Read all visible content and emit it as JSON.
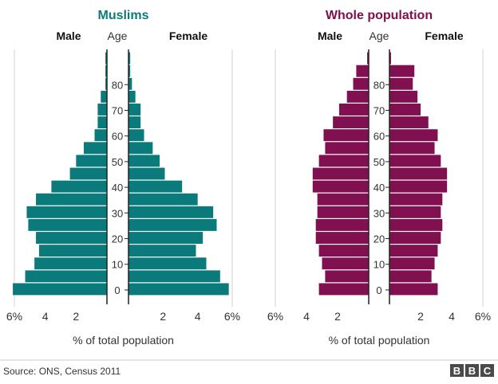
{
  "source": "Source: ONS, Census 2011",
  "logo": "BBC",
  "colors": {
    "muslims": "#0b7a7a",
    "whole": "#80104f"
  },
  "chart_data": [
    {
      "type": "bar",
      "orientation": "population-pyramid",
      "title": "Muslims",
      "male_label": "Male",
      "female_label": "Female",
      "age_header": "Age",
      "age_ticks": [
        "0",
        "10",
        "20",
        "30",
        "40",
        "50",
        "60",
        "70",
        "80"
      ],
      "age_bands": [
        "0-4",
        "5-9",
        "10-14",
        "15-19",
        "20-24",
        "25-29",
        "30-34",
        "35-39",
        "40-44",
        "45-49",
        "50-54",
        "55-59",
        "60-64",
        "65-69",
        "70-74",
        "75-79",
        "80-84",
        "85-89",
        "90+"
      ],
      "x_ticks": [
        "6%",
        "4",
        "2",
        "2",
        "4",
        "6%"
      ],
      "xlabel": "% of total population",
      "xlim": [
        0,
        6
      ],
      "male": [
        6.1,
        5.3,
        4.7,
        4.4,
        4.6,
        5.1,
        5.2,
        4.6,
        3.6,
        2.4,
        2.0,
        1.5,
        0.8,
        0.6,
        0.6,
        0.4,
        0.1,
        0.1,
        0.1
      ],
      "female": [
        5.8,
        5.3,
        4.5,
        3.9,
        4.3,
        5.1,
        4.9,
        4.0,
        3.1,
        2.1,
        1.8,
        1.4,
        0.9,
        0.7,
        0.7,
        0.4,
        0.2,
        0.1,
        0.1
      ]
    },
    {
      "type": "bar",
      "orientation": "population-pyramid",
      "title": "Whole population",
      "male_label": "Male",
      "female_label": "Female",
      "age_header": "Age",
      "age_ticks": [
        "0",
        "10",
        "20",
        "30",
        "40",
        "50",
        "60",
        "70",
        "80"
      ],
      "age_bands": [
        "0-4",
        "5-9",
        "10-14",
        "15-19",
        "20-24",
        "25-29",
        "30-34",
        "35-39",
        "40-44",
        "45-49",
        "50-54",
        "55-59",
        "60-64",
        "65-69",
        "70-74",
        "75-79",
        "80-84",
        "85-89",
        "90+"
      ],
      "x_ticks": [
        "6%",
        "4",
        "2",
        "2",
        "4",
        "6%"
      ],
      "xlabel": "% of total population",
      "xlim": [
        0,
        6
      ],
      "male": [
        3.2,
        2.8,
        3.0,
        3.2,
        3.4,
        3.4,
        3.3,
        3.3,
        3.6,
        3.6,
        3.2,
        2.8,
        2.9,
        2.3,
        1.9,
        1.4,
        1.0,
        0.8,
        0.1
      ],
      "female": [
        3.1,
        2.7,
        2.9,
        3.1,
        3.3,
        3.4,
        3.3,
        3.4,
        3.7,
        3.7,
        3.3,
        2.9,
        3.1,
        2.5,
        2.0,
        1.8,
        1.5,
        1.6,
        0.1
      ]
    }
  ]
}
